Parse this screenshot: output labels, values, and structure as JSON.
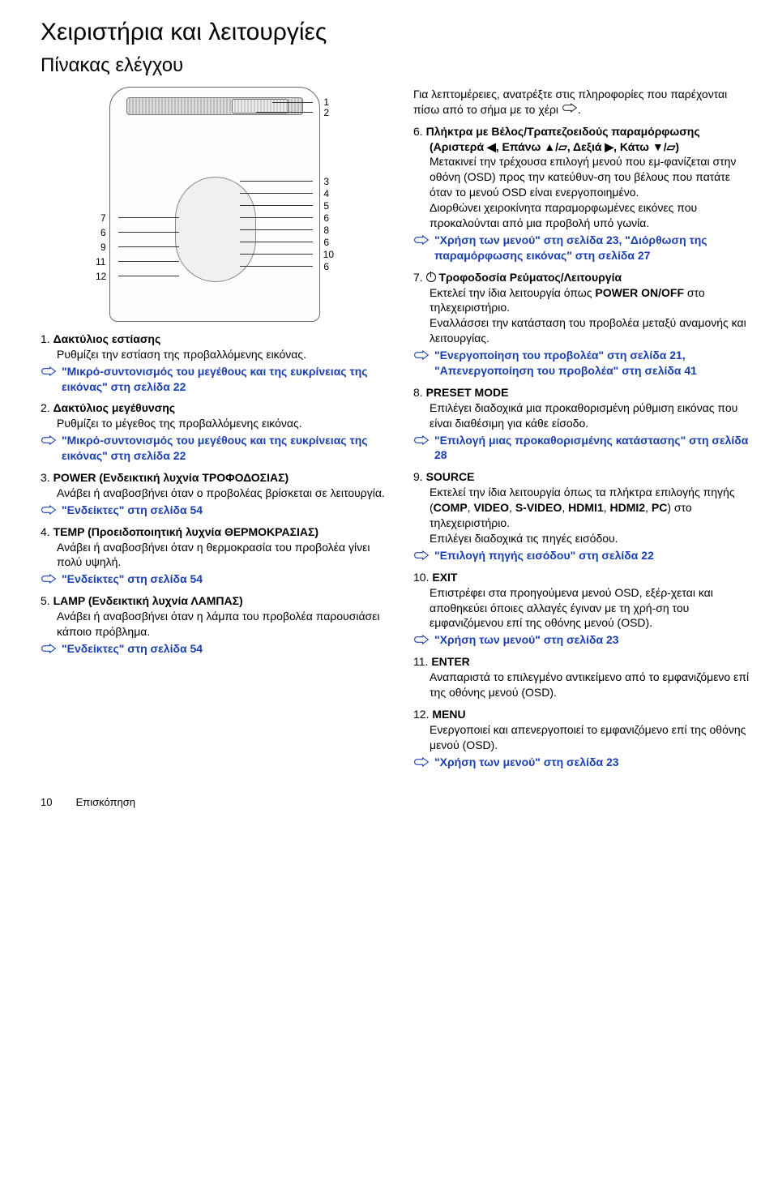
{
  "page": {
    "title": "Χειριστήρια και λειτουργίες",
    "subtitle": "Πίνακας ελέγχου",
    "page_number": "10",
    "section_label": "Επισκόπηση"
  },
  "diagram": {
    "callouts_right": [
      "1",
      "2",
      "3",
      "4",
      "5",
      "6",
      "8",
      "6",
      "10",
      "6"
    ],
    "callouts_left": [
      "7",
      "6",
      "9",
      "11",
      "12"
    ]
  },
  "intro_right": "Για λεπτομέρειες, ανατρέξτε στις πληροφορίες που παρέχονται πίσω από το σήμα με το χέρι",
  "items_left": [
    {
      "num": "1.",
      "title": "Δακτύλιος εστίασης",
      "desc": "Ρυθμίζει την εστίαση της προβαλλόμενης εικόνας.",
      "ref": "\"Μικρό-συντονισμός του μεγέθους και της ευκρίνειας της εικόνας\" στη σελίδα 22"
    },
    {
      "num": "2.",
      "title": "Δακτύλιος μεγέθυνσης",
      "desc": "Ρυθμίζει το μέγεθος της προβαλλόμενης εικόνας.",
      "ref": "\"Μικρό-συντονισμός του μεγέθους και της ευκρίνειας της εικόνας\" στη σελίδα 22"
    },
    {
      "num": "3.",
      "title": "POWER (Ενδεικτική λυχνία ΤΡΟΦΟΔΟΣΙΑΣ)",
      "desc": "Ανάβει ή αναβοσβήνει όταν ο προβολέας βρίσκεται σε λειτουργία.",
      "ref": "\"Ενδείκτες\" στη σελίδα 54"
    },
    {
      "num": "4.",
      "title": "TEMP (Προειδοποιητική λυχνία ΘΕΡΜΟΚΡΑΣΙΑΣ)",
      "desc": "Ανάβει ή αναβοσβήνει όταν η θερμοκρασία του προβολέα γίνει πολύ υψηλή.",
      "ref": "\"Ενδείκτες\" στη σελίδα 54"
    },
    {
      "num": "5.",
      "title": "LAMP (Ενδεικτική λυχνία ΛΑΜΠΑΣ)",
      "desc": "Ανάβει ή αναβοσβήνει όταν η λάμπα του προβολέα παρουσιάσει κάποιο πρόβλημα.",
      "ref": "\"Ενδείκτες\" στη σελίδα 54"
    }
  ],
  "items_right": [
    {
      "num": "6.",
      "title": "Πλήκτρα με Βέλος/Τραπεζοειδούς παραμόρφωσης (Αριστερά ◀, Επάνω ▲/▱, Δεξιά ▶, Κάτω ▼/▱)",
      "desc": "Μετακινεί την τρέχουσα επιλογή μενού που εμ-φανίζεται στην οθόνη (OSD) προς την κατεύθυν-ση του βέλους που πατάτε όταν το μενού OSD είναι ενεργοποιημένο.\nΔιορθώνει χειροκίνητα παραμορφωμένες εικόνες που προκαλούνται από μια προβολή υπό γωνία.",
      "ref": "\"Χρήση των μενού\" στη σελίδα 23, \"Διόρθωση της παραμόρφωσης εικόνας\" στη σελίδα 27"
    },
    {
      "num": "7.",
      "title": "Τροφοδοσία Ρεύματος/Λειτουργία",
      "title_prefix_power": true,
      "desc": "Εκτελεί την ίδια λειτουργία όπως POWER ON/OFF στο τηλεχειριστήριο.\nΕναλλάσσει την κατάσταση του προβολέα μεταξύ αναμονής και λειτουργίας.",
      "ref": "\"Ενεργοποίηση του προβολέα\" στη σελίδα 21, \"Απενεργοποίηση του προβολέα\" στη σελίδα 41"
    },
    {
      "num": "8.",
      "title": "PRESET MODE",
      "desc": "Επιλέγει διαδοχικά μια προκαθορισμένη ρύθμιση εικόνας που είναι διαθέσιμη για κάθε είσοδο.",
      "ref": "\"Επιλογή μιας προκαθορισμένης κατάστασης\" στη σελίδα 28"
    },
    {
      "num": "9.",
      "title": "SOURCE",
      "desc": "Εκτελεί την ίδια λειτουργία όπως τα πλήκτρα επιλογής πηγής (COMP, VIDEO, S-VIDEO, HDMI1, HDMI2, PC) στο τηλεχειριστήριο.\nΕπιλέγει διαδοχικά τις πηγές εισόδου.",
      "ref": "\"Επιλογή πηγής εισόδου\" στη σελίδα 22"
    },
    {
      "num": "10.",
      "title": "EXIT",
      "desc": "Επιστρέφει στα προηγούμενα μενού OSD, εξέρ-χεται και αποθηκεύει όποιες αλλαγές έγιναν με τη χρή-ση του εμφανιζόμενου επί της οθόνης μενού (OSD).",
      "ref": "\"Χρήση των μενού\" στη σελίδα 23"
    },
    {
      "num": "11.",
      "title": "ENTER",
      "desc": "Αναπαριστά το επιλεγμένο αντικείμενο από το εμφανιζόμενο επί της οθόνης μενού (OSD).",
      "ref": ""
    },
    {
      "num": "12.",
      "title": "MENU",
      "desc": "Ενεργοποιεί και απενεργοποιεί το εμφανιζόμενο επί της οθόνης μενού (OSD).",
      "ref": "\"Χρήση των μενού\" στη σελίδα 23"
    }
  ],
  "colors": {
    "ref_link": "#1a3fb0",
    "text": "#000000",
    "bg": "#ffffff"
  }
}
